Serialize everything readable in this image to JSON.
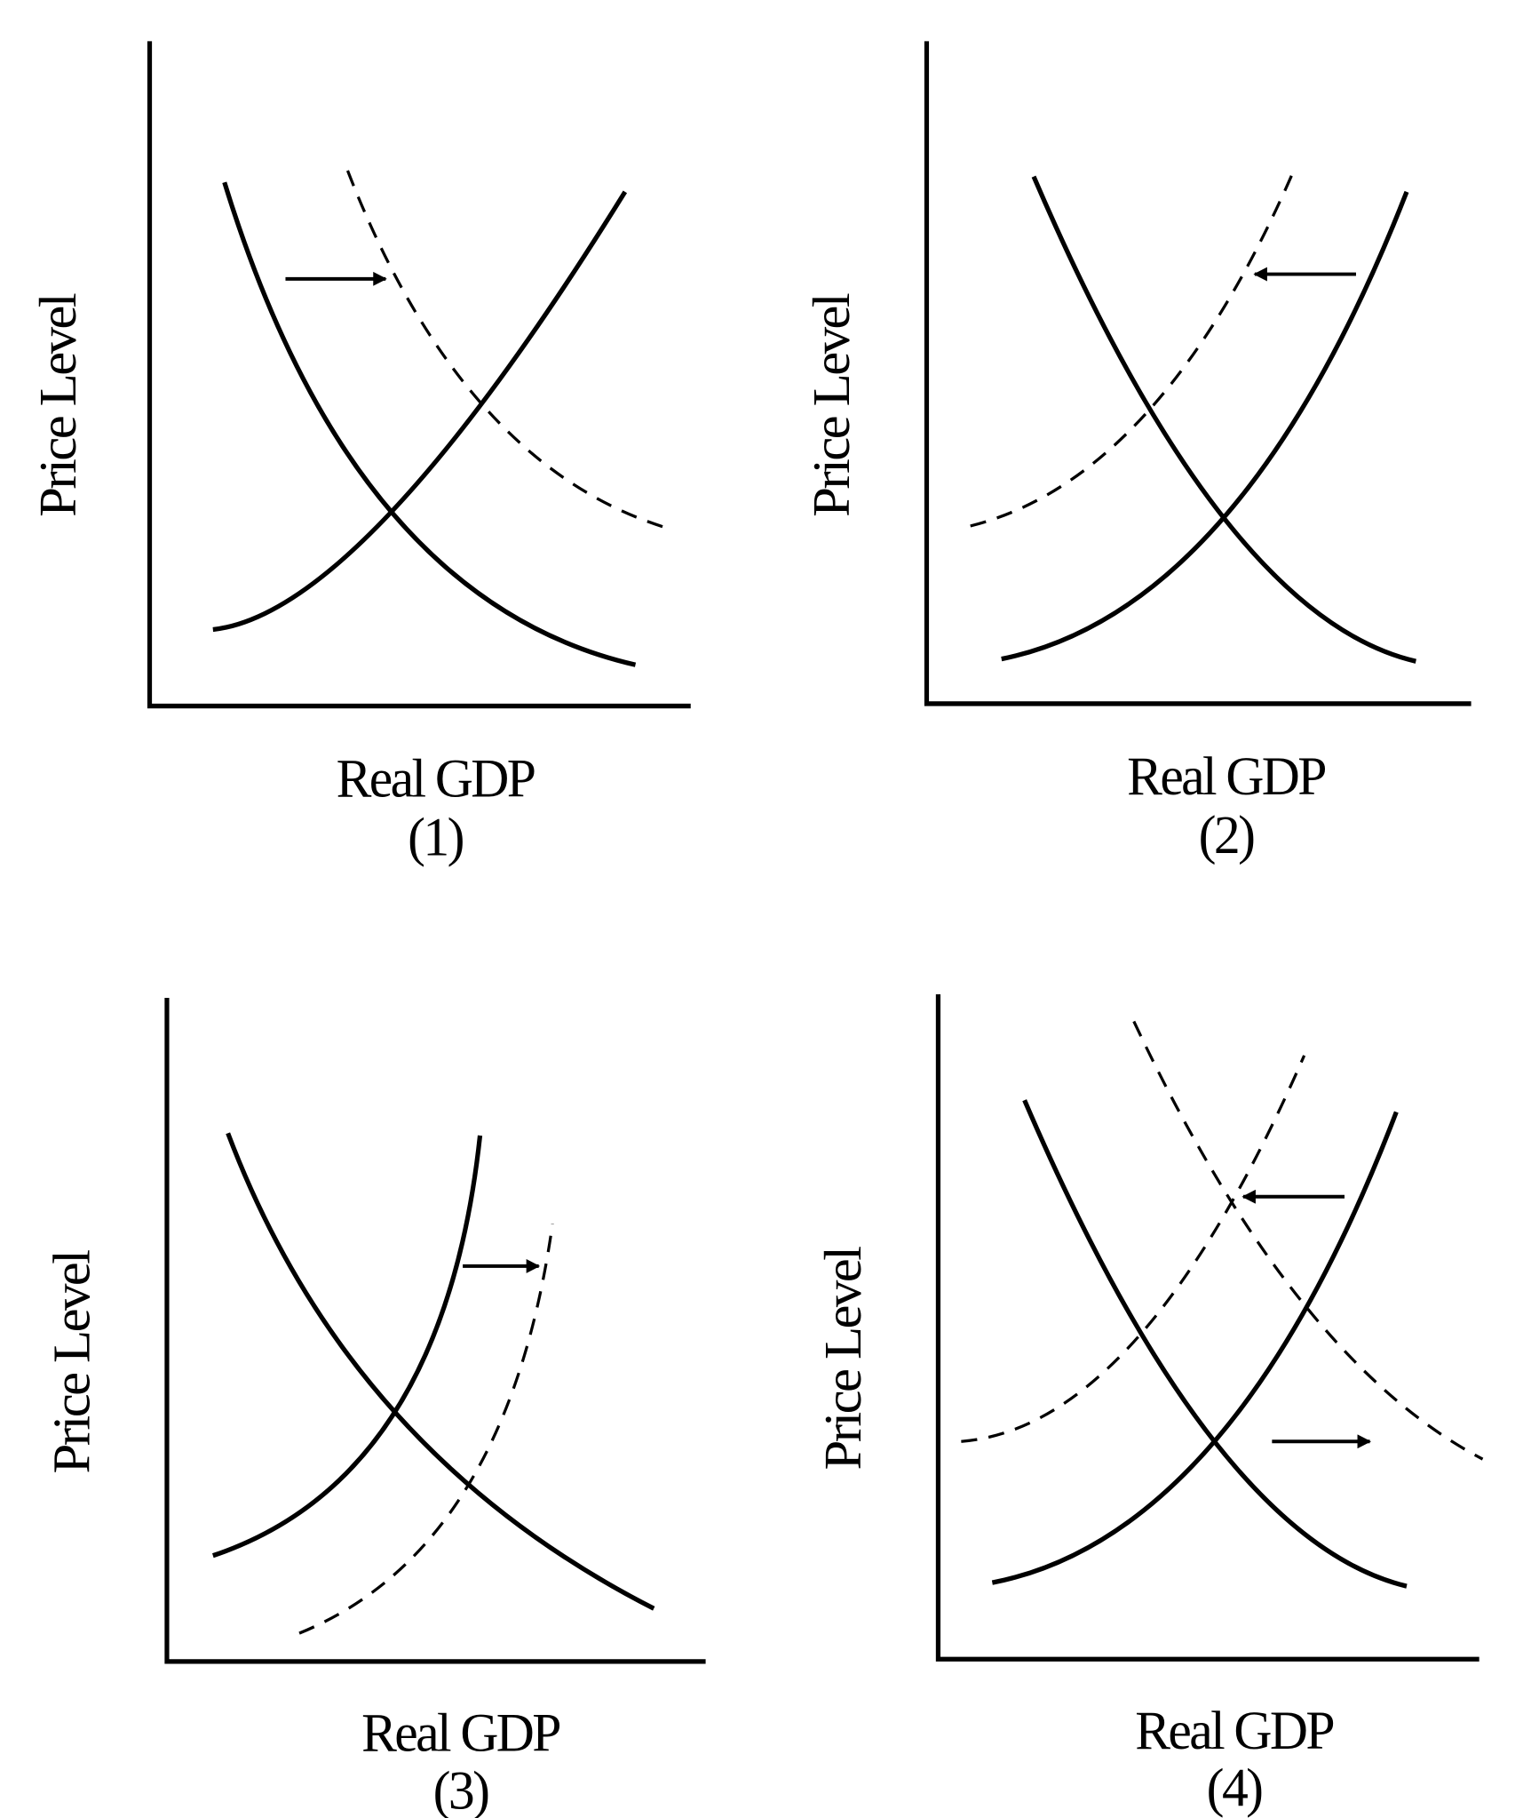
{
  "panels": [
    {
      "y_label": "Price Level",
      "x_label": "Real GDP",
      "caption": "(1)"
    },
    {
      "y_label": "Price Level",
      "x_label": "Real GDP",
      "caption": "(2)"
    },
    {
      "y_label": "Price Level",
      "x_label": "Real GDP",
      "caption": "(3)"
    },
    {
      "y_label": "Price Level",
      "x_label": "Real GDP",
      "caption": "(4)"
    }
  ]
}
